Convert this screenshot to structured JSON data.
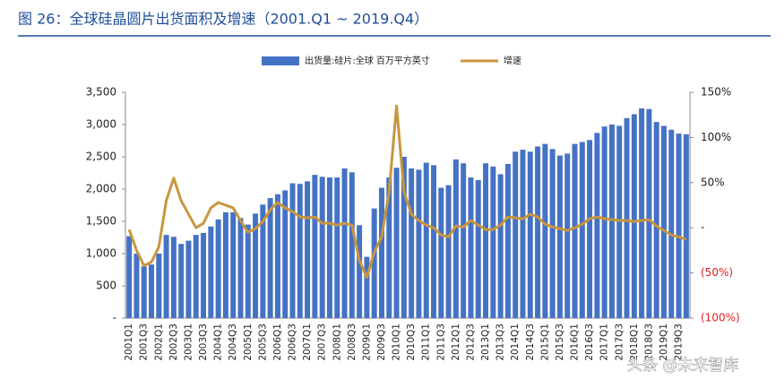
{
  "chart_data": {
    "type": "bar-line",
    "title": "图 26：全球硅晶圆片出货面积及增速（2001.Q1 ~ 2019.Q4）",
    "watermark": "头条 @未来智库",
    "categories": [
      "2001Q1",
      null,
      "2001Q3",
      null,
      "2002Q1",
      null,
      "2002Q3",
      null,
      "2003Q1",
      null,
      "2003Q3",
      null,
      "2004Q1",
      null,
      "2004Q3",
      null,
      "2005Q1",
      null,
      "2005Q3",
      null,
      "2006Q1",
      null,
      "2006Q3",
      null,
      "2007Q1",
      null,
      "2007Q3",
      null,
      "2008Q1",
      null,
      "2008Q3",
      null,
      "2009Q1",
      null,
      "2009Q3",
      null,
      "2010Q1",
      null,
      "2010Q3",
      null,
      "2011Q1",
      null,
      "2011Q3",
      null,
      "2012Q1",
      null,
      "2012Q3",
      null,
      "2013Q1",
      null,
      "2013Q3",
      null,
      "2014Q1",
      null,
      "2014Q3",
      null,
      "2015Q1",
      null,
      "2015Q3",
      null,
      "2016Q1",
      null,
      "2016Q3",
      null,
      "2017Q1",
      null,
      "2017Q3",
      null,
      "2018Q1",
      null,
      "2018Q3",
      null,
      "2019Q1",
      null,
      "2019Q3",
      null
    ],
    "series": [
      {
        "name": "出货量:硅片:全球 百万平方英寸",
        "type": "bar",
        "color": "#4472c4",
        "values": [
          1270,
          1000,
          800,
          830,
          1000,
          1290,
          1260,
          1150,
          1200,
          1290,
          1320,
          1420,
          1530,
          1640,
          1640,
          1550,
          1450,
          1620,
          1760,
          1860,
          1920,
          1980,
          2090,
          2080,
          2120,
          2220,
          2190,
          2180,
          2180,
          2320,
          2260,
          1440,
          950,
          1700,
          2020,
          2180,
          2330,
          2500,
          2320,
          2300,
          2410,
          2370,
          2020,
          2060,
          2460,
          2400,
          2180,
          2140,
          2400,
          2350,
          2230,
          2390,
          2580,
          2610,
          2580,
          2660,
          2700,
          2620,
          2520,
          2550,
          2700,
          2730,
          2760,
          2870,
          2970,
          3000,
          2980,
          3100,
          3160,
          3250,
          3240,
          3040,
          2980,
          2920,
          2860,
          2850
        ]
      },
      {
        "name": "增速",
        "type": "line",
        "axis": "y2",
        "color": "#c9963e",
        "values": [
          -2,
          -25,
          -42,
          -38,
          -21,
          30,
          55,
          30,
          15,
          0,
          5,
          22,
          28,
          25,
          22,
          8,
          -5,
          -1,
          7,
          20,
          28,
          22,
          18,
          12,
          11,
          12,
          5,
          5,
          3,
          5,
          3,
          -36,
          -55,
          -27,
          -10,
          40,
          135,
          40,
          15,
          8,
          3,
          0,
          -8,
          -10,
          2,
          1,
          8,
          3,
          -2,
          -2,
          3,
          12,
          11,
          10,
          15,
          12,
          4,
          1,
          -1,
          -3,
          0,
          4,
          10,
          12,
          10,
          9,
          8,
          8,
          7,
          8,
          9,
          2,
          -3,
          -8,
          -10,
          -13
        ]
      }
    ],
    "ylim": [
      0,
      3500
    ],
    "yticks": [
      {
        "value": 0,
        "label": "-"
      },
      500,
      {
        "value": 1000,
        "label": "1,000"
      },
      {
        "value": 1500,
        "label": "1,500"
      },
      {
        "value": 2000,
        "label": "2,000"
      },
      {
        "value": 2500,
        "label": "2,500"
      },
      {
        "value": 3000,
        "label": "3,000"
      },
      {
        "value": 3500,
        "label": "3,500"
      }
    ],
    "y2lim": [
      -100,
      150
    ],
    "y2ticks": [
      {
        "value": -100,
        "label": "(100%)"
      },
      {
        "value": -50,
        "label": "(50%)"
      },
      {
        "value": 0,
        "label": "-"
      },
      {
        "value": 50,
        "label": "50%"
      },
      {
        "value": 100,
        "label": "100%"
      },
      {
        "value": 150,
        "label": "150%"
      }
    ],
    "grid": false,
    "legend": "top"
  }
}
